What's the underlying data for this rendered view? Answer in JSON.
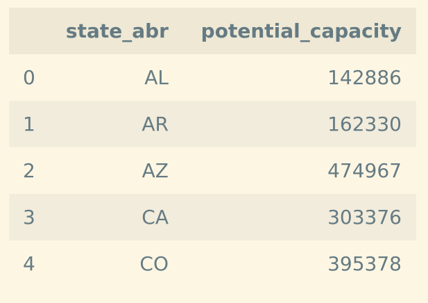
{
  "table": {
    "columns": [
      "",
      "state_abr",
      "potential_capacity"
    ],
    "rows": [
      {
        "index": "0",
        "state_abr": "AL",
        "potential_capacity": "142886"
      },
      {
        "index": "1",
        "state_abr": "AR",
        "potential_capacity": "162330"
      },
      {
        "index": "2",
        "state_abr": "AZ",
        "potential_capacity": "474967"
      },
      {
        "index": "3",
        "state_abr": "CA",
        "potential_capacity": "303376"
      },
      {
        "index": "4",
        "state_abr": "CO",
        "potential_capacity": "395378"
      }
    ]
  },
  "colors": {
    "background": "#fdf6e3",
    "header_background": "#eee8d5",
    "stripe_background": "#f2ecdc",
    "text": "#657b83"
  }
}
